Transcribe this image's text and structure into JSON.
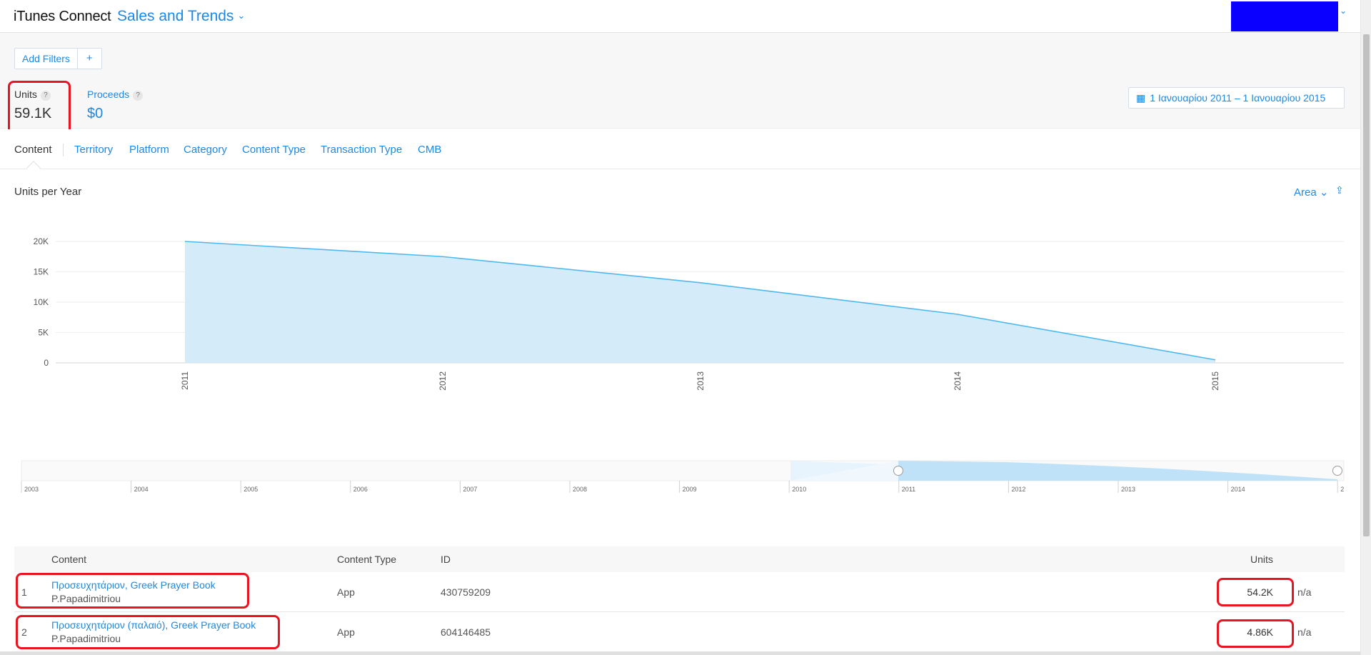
{
  "app": {
    "name": "iTunes Connect",
    "module": "Sales and Trends"
  },
  "filters": {
    "add_label": "Add Filters",
    "plus_label": "+"
  },
  "metrics": {
    "units_label": "Units",
    "units_value": "59.1K",
    "proceeds_label": "Proceeds",
    "proceeds_value": "$0",
    "help_glyph": "?"
  },
  "date_range": "1 Ιανουαρίου 2011 – 1 Ιανουαρίου 2015",
  "tabs": [
    "Content",
    "Territory",
    "Platform",
    "Category",
    "Content Type",
    "Transaction Type",
    "CMB"
  ],
  "chart_controls": {
    "type_label": "Area"
  },
  "chart_data": {
    "type": "area",
    "title": "Units per Year",
    "x": [
      "2011",
      "2012",
      "2013",
      "2014",
      "2015"
    ],
    "series": [
      {
        "values": [
          20000,
          17500,
          13200,
          8000,
          500
        ]
      }
    ],
    "yticks": [
      "0",
      "5K",
      "10K",
      "15K",
      "20K"
    ],
    "ylim": [
      0,
      20000
    ],
    "grid": true,
    "color": "#4fb8ee"
  },
  "timeline": {
    "years": [
      "2003",
      "2004",
      "2005",
      "2006",
      "2007",
      "2008",
      "2009",
      "2010",
      "2011",
      "2012",
      "2013",
      "2014",
      "2"
    ]
  },
  "table": {
    "headers": {
      "content": "Content",
      "content_type": "Content Type",
      "id": "ID",
      "units": "Units"
    },
    "rows": [
      {
        "index": "1",
        "name": "Προσευχητάριον, Greek Prayer Book",
        "developer": "P.Papadimitriou",
        "content_type": "App",
        "id": "430759209",
        "units": "54.2K",
        "extra": "n/a"
      },
      {
        "index": "2",
        "name": "Προσευχητάριον (παλαιό), Greek Prayer Book",
        "developer": "P.Papadimitriou",
        "content_type": "App",
        "id": "604146485",
        "units": "4.86K",
        "extra": "n/a"
      }
    ]
  },
  "colors": {
    "accent": "#1e88e5",
    "highlight": "#e8141f",
    "account_block": "#0a00ff"
  }
}
